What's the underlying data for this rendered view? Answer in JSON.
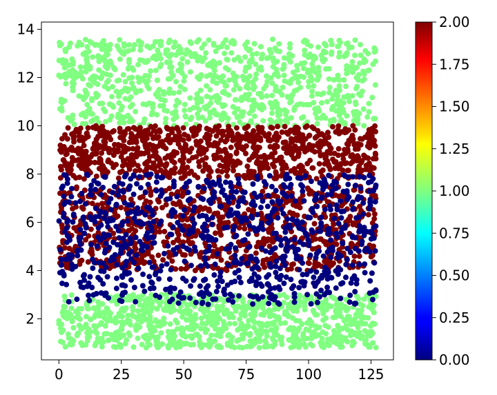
{
  "chart_data": {
    "type": "scatter",
    "title": "",
    "xlabel": "",
    "ylabel": "",
    "xlim": [
      -7,
      134
    ],
    "ylim": [
      0.3,
      14.3
    ],
    "x_ticks": [
      0,
      25,
      50,
      75,
      100,
      125
    ],
    "y_ticks": [
      2,
      4,
      6,
      8,
      10,
      12,
      14
    ],
    "x_range": [
      0,
      127
    ],
    "grid": false,
    "legend": "none",
    "colormap": "jet",
    "colorbar": {
      "vmin": 0.0,
      "vmax": 2.0,
      "ticks": [
        0.0,
        0.25,
        0.5,
        0.75,
        1.0,
        1.25,
        1.5,
        1.75,
        2.0
      ],
      "tick_labels": [
        "0.00",
        "0.25",
        "0.50",
        "0.75",
        "1.00",
        "1.25",
        "1.50",
        "1.75",
        "2.00"
      ]
    },
    "classes": [
      {
        "value": 1.0,
        "color": "#80ff80",
        "y_bands": [
          [
            0.8,
            3.0
          ],
          [
            10.0,
            13.6
          ]
        ]
      },
      {
        "value": 2.0,
        "color": "#800000",
        "y_bands": [
          [
            7.8,
            10.0
          ],
          [
            4.0,
            7.5
          ]
        ]
      },
      {
        "value": 0.0,
        "color": "#00007f",
        "y_bands": [
          [
            2.6,
            8.0
          ]
        ]
      }
    ]
  }
}
